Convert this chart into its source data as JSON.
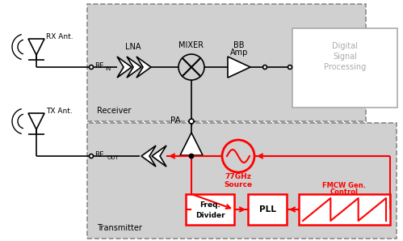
{
  "bg": "white",
  "gray": "#d0d0d0",
  "dgray": "#aaaaaa",
  "red": "red",
  "black": "black",
  "receiver_label": "Receiver",
  "transmitter_label": "Transmitter",
  "dsp_lines": [
    "Digital",
    "Signal",
    "Processing"
  ],
  "lna_label": "LNA",
  "mixer_label": "MIXER",
  "bb_label1": "BB",
  "bb_label2": "Amp",
  "pa_label": "PA",
  "src_label1": "77GHz",
  "src_label2": "Source",
  "freq_label1": "Freq.",
  "freq_label2": "Divider",
  "pll_label": "PLL",
  "fmcw_label1": "FMCW Gen.",
  "fmcw_label2": "Control",
  "rfin_label": "RF",
  "rfin_sub": "IN",
  "rfout_label": "RF",
  "rfout_sub": "OUT",
  "rx_ant_label": "RX Ant.",
  "tx_ant_label": "TX Ant."
}
